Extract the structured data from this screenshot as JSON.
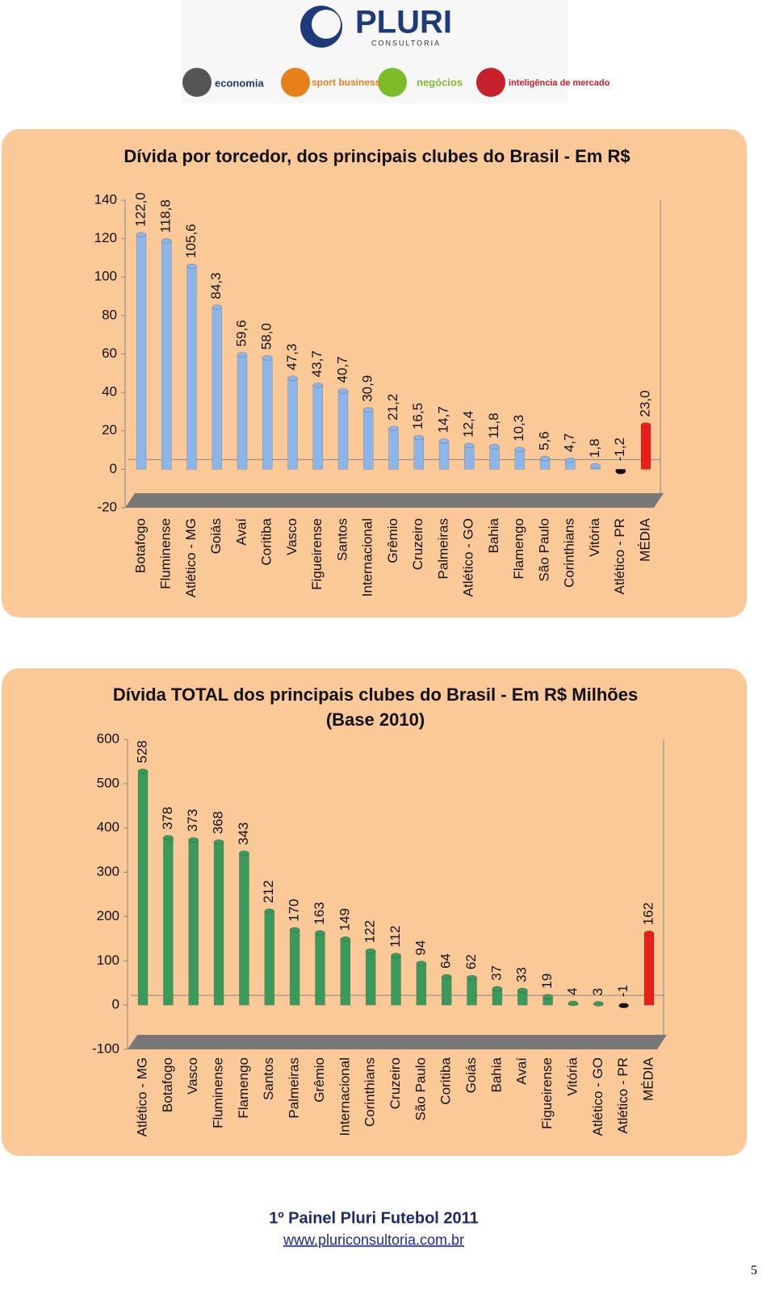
{
  "header": {
    "brand": "PLURI",
    "subbrand": "CONSULTORIA",
    "items": [
      "economia",
      "sport business",
      "negócios",
      "inteligência de mercado"
    ]
  },
  "chart_data": [
    {
      "type": "bar",
      "title": [
        "Dívida por torcedor, dos principais clubes do Brasil - Em R$"
      ],
      "categories": [
        "Botafogo",
        "Fluminense",
        "Atlético - MG",
        "Goiás",
        "Avaí",
        "Coritiba",
        "Vasco",
        "Figueirense",
        "Santos",
        "Internacional",
        "Grêmio",
        "Cruzeiro",
        "Palmeiras",
        "Atlético - GO",
        "Bahia",
        "Flamengo",
        "São Paulo",
        "Corinthians",
        "Vitória",
        "Atlético - PR",
        "MÉDIA"
      ],
      "values": [
        122.0,
        118.8,
        105.6,
        84.3,
        59.6,
        58.0,
        47.3,
        43.7,
        40.7,
        30.9,
        21.2,
        16.5,
        14.7,
        12.4,
        11.8,
        10.3,
        5.6,
        4.7,
        1.8,
        -1.2,
        23.0
      ],
      "value_labels": [
        "122,0",
        "118,8",
        "105,6",
        "84,3",
        "59,6",
        "58,0",
        "47,3",
        "43,7",
        "40,7",
        "30,9",
        "21,2",
        "16,5",
        "14,7",
        "12,4",
        "11,8",
        "10,3",
        "5,6",
        "4,7",
        "1,8",
        "-1,2",
        "23,0"
      ],
      "colors": [
        "#8cb6ea",
        "#8cb6ea",
        "#8cb6ea",
        "#8cb6ea",
        "#8cb6ea",
        "#8cb6ea",
        "#8cb6ea",
        "#8cb6ea",
        "#8cb6ea",
        "#8cb6ea",
        "#8cb6ea",
        "#8cb6ea",
        "#8cb6ea",
        "#8cb6ea",
        "#8cb6ea",
        "#8cb6ea",
        "#8cb6ea",
        "#8cb6ea",
        "#8cb6ea",
        "#111111",
        "#e8201a"
      ],
      "ylim": [
        -20,
        140
      ],
      "yticks": [
        -20,
        0,
        20,
        40,
        60,
        80,
        100,
        120,
        140
      ],
      "grid": false
    },
    {
      "type": "bar",
      "title": [
        "Dívida TOTAL dos principais clubes do Brasil - Em R$ Milhões",
        "(Base 2010)"
      ],
      "categories": [
        "Atlético - MG",
        "Botafogo",
        "Vasco",
        "Fluminense",
        "Flamengo",
        "Santos",
        "Palmeiras",
        "Grêmio",
        "Internacional",
        "Corinthians",
        "Cruzeiro",
        "São Paulo",
        "Coritiba",
        "Goiás",
        "Bahia",
        "Avaí",
        "Figueirense",
        "Vitória",
        "Atlético - GO",
        "Atlético - PR",
        "MÉDIA"
      ],
      "values": [
        528,
        378,
        373,
        368,
        343,
        212,
        170,
        163,
        149,
        122,
        112,
        94,
        64,
        62,
        37,
        33,
        19,
        4,
        3,
        -1,
        162
      ],
      "colors": [
        "#3a9a5c",
        "#3a9a5c",
        "#3a9a5c",
        "#3a9a5c",
        "#3a9a5c",
        "#3a9a5c",
        "#3a9a5c",
        "#3a9a5c",
        "#3a9a5c",
        "#3a9a5c",
        "#3a9a5c",
        "#3a9a5c",
        "#3a9a5c",
        "#3a9a5c",
        "#3a9a5c",
        "#3a9a5c",
        "#3a9a5c",
        "#3a9a5c",
        "#3a9a5c",
        "#111111",
        "#e8201a"
      ],
      "ylim": [
        -100,
        600
      ],
      "yticks": [
        -100,
        0,
        100,
        200,
        300,
        400,
        500,
        600
      ],
      "grid": false
    }
  ],
  "footer": {
    "event": "1º Painel Pluri Futebol 2011",
    "url": "www.pluriconsultoria.com.br",
    "page": "5"
  }
}
